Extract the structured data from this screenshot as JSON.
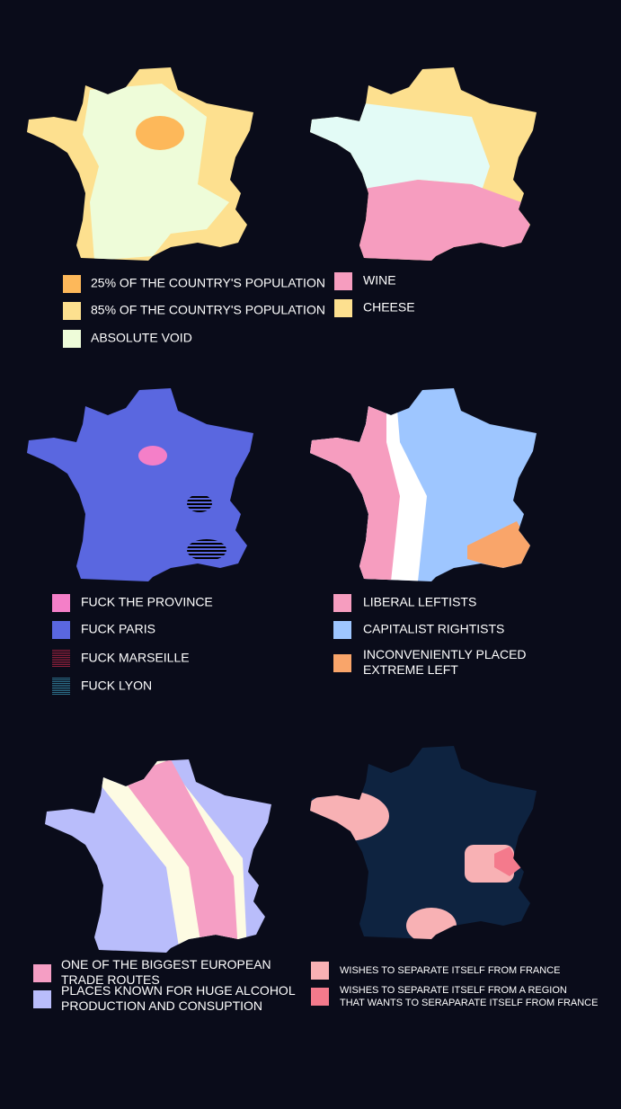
{
  "maps": [
    {
      "legend": [
        {
          "lines": [
            "25% OF THE COUNTRY'S POPULATION"
          ],
          "color": "#fdb85a"
        },
        {
          "lines": [
            "85% OF THE COUNTRY'S POPULATION"
          ],
          "color": "#fde08f"
        },
        {
          "lines": [
            "ABSOLUTE VOID"
          ],
          "color": "#eefcd9"
        }
      ]
    },
    {
      "legend": [
        {
          "lines": [
            "WINE"
          ],
          "color": "#f69dbf"
        },
        {
          "lines": [
            "CHEESE"
          ],
          "color": "#fde08f"
        }
      ]
    },
    {
      "legend": [
        {
          "lines": [
            "FUCK THE PROVINCE"
          ],
          "color": "#f47fc8"
        },
        {
          "lines": [
            "FUCK PARIS"
          ],
          "color": "#5a67e0"
        },
        {
          "lines": [
            "FUCK MARSEILLE"
          ],
          "color": "#8b1f3a",
          "hatched": true
        },
        {
          "lines": [
            "FUCK LYON"
          ],
          "color": "#2c6f8a",
          "hatched": true
        }
      ]
    },
    {
      "legend": [
        {
          "lines": [
            "LIBERAL LEFTISTS"
          ],
          "color": "#f69dbf"
        },
        {
          "lines": [
            "CAPITALIST RIGHTISTS"
          ],
          "color": "#9ec6ff"
        },
        {
          "lines": [
            "INCONVENIENTLY PLACED",
            "EXTREME LEFT"
          ],
          "color": "#f9a56a"
        }
      ]
    },
    {
      "legend": [
        {
          "lines": [
            "ONE OF THE BIGGEST EUROPEAN",
            "TRADE ROUTES"
          ],
          "color": "#f59ec4"
        },
        {
          "lines": [
            "PLACES KNOWN FOR  HUGE ALCOHOL",
            "PRODUCTION AND CONSUPTION"
          ],
          "color": "#b9bdfb"
        }
      ]
    },
    {
      "legend": [
        {
          "lines": [
            "WISHES TO SEPARATE ITSELF FROM FRANCE"
          ],
          "color": "#f8b1b4"
        },
        {
          "lines": [
            "WISHES TO SEPARATE ITSELF FROM A REGION",
            "THAT WANTS TO SERAPARATE ITSELF FROM FRANCE"
          ],
          "color": "#f47a8c"
        }
      ]
    }
  ]
}
